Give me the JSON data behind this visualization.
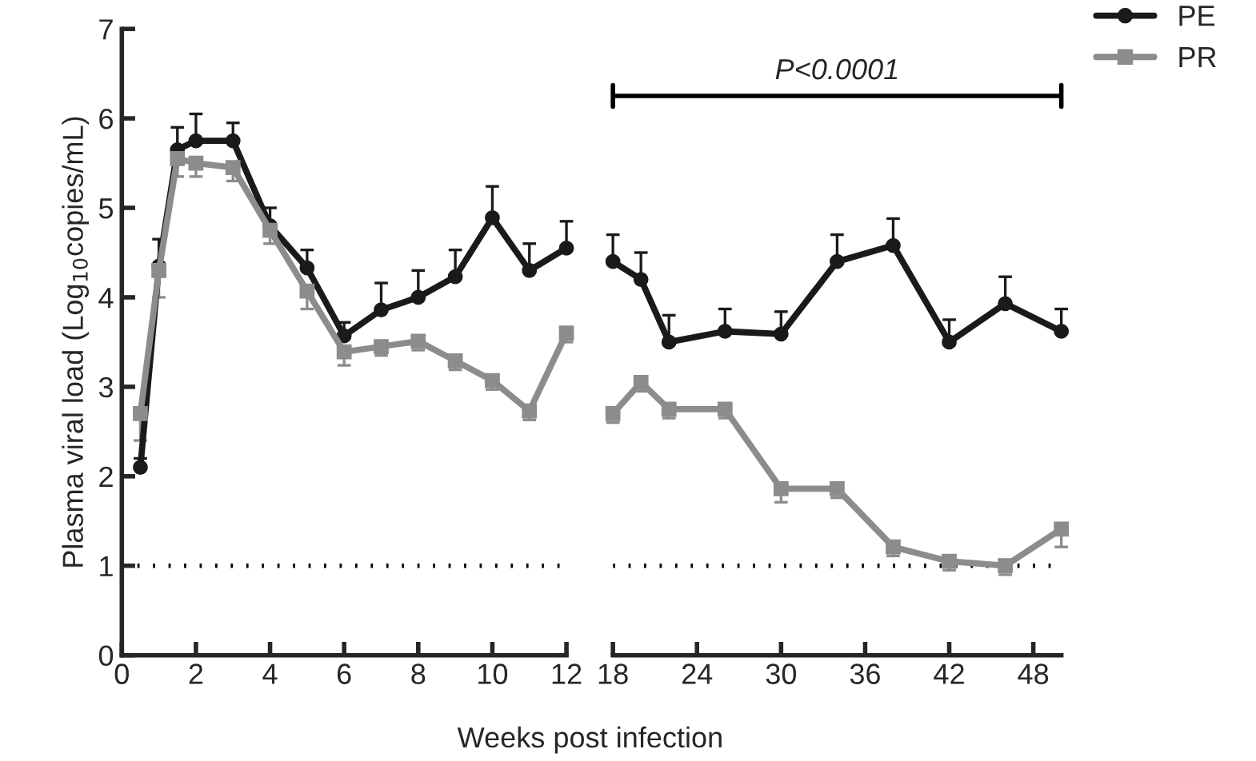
{
  "chart_data": [
    {
      "type": "line",
      "ylabel": "Plasma viral load (Log$_{10}$copies/mL)",
      "xlabel": "Weeks post infection",
      "xlim": [
        0,
        12
      ],
      "xticks": [
        0,
        2,
        4,
        6,
        8,
        10,
        12
      ],
      "ylim": [
        0,
        7
      ],
      "yticks": [
        0,
        1,
        2,
        3,
        4,
        5,
        6,
        7
      ],
      "grid": false,
      "line_style": "solid",
      "ref_lines": [
        {
          "axis": "y",
          "value": 1,
          "line_style": "dotted",
          "color": "#000000"
        }
      ],
      "series": [
        {
          "color": "#1a1a1a",
          "marker": "circle",
          "x": [
            0.5,
            1,
            1.5,
            2,
            3,
            4,
            5,
            6,
            7,
            8,
            9,
            10,
            11,
            12
          ],
          "values": [
            2.1,
            4.35,
            5.65,
            5.75,
            5.75,
            4.8,
            4.33,
            3.57,
            3.86,
            4.0,
            4.23,
            4.89,
            4.3,
            4.55
          ],
          "errors": [
            [
              2.1,
              2.2
            ],
            [
              4.35,
              4.65
            ],
            [
              5.65,
              5.9
            ],
            [
              5.75,
              6.05
            ],
            [
              5.75,
              5.95
            ],
            [
              4.8,
              5.0
            ],
            [
              4.33,
              4.53
            ],
            [
              3.57,
              3.72
            ],
            [
              3.86,
              4.16
            ],
            [
              4.0,
              4.3
            ],
            [
              4.23,
              4.53
            ],
            [
              4.89,
              5.24
            ],
            [
              4.3,
              4.6
            ],
            [
              4.55,
              4.85
            ]
          ]
        },
        {
          "color": "#8c8c8c",
          "marker": "square",
          "x": [
            0.5,
            1,
            1.5,
            2,
            3,
            4,
            5,
            6,
            7,
            8,
            9,
            10,
            11,
            12
          ],
          "values": [
            2.7,
            4.3,
            5.55,
            5.5,
            5.45,
            4.75,
            4.07,
            3.39,
            3.45,
            3.51,
            3.29,
            3.07,
            2.73,
            3.6
          ],
          "errors": [
            [
              2.4,
              2.7
            ],
            [
              4.0,
              4.3
            ],
            [
              5.35,
              5.55
            ],
            [
              5.35,
              5.5
            ],
            [
              5.3,
              5.45
            ],
            [
              4.6,
              4.75
            ],
            [
              3.87,
              4.07
            ],
            [
              3.24,
              3.39
            ],
            [
              3.35,
              3.45
            ],
            [
              3.41,
              3.51
            ],
            [
              3.19,
              3.29
            ],
            [
              2.97,
              3.07
            ],
            [
              2.63,
              2.73
            ],
            [
              3.5,
              3.6
            ]
          ]
        }
      ]
    },
    {
      "type": "line",
      "tick_labels": "x",
      "xlim": [
        18,
        50
      ],
      "xticks": [
        18,
        24,
        30,
        36,
        42,
        48
      ],
      "ylim": [
        0,
        7
      ],
      "yticks": [
        0,
        1,
        2,
        3,
        4,
        5,
        6,
        7
      ],
      "grid": false,
      "legend": "top right",
      "line_style": "solid",
      "annotations": [
        "P<0.0001"
      ],
      "ref_lines": [
        {
          "axis": "y",
          "value": 1,
          "line_style": "dotted",
          "color": "#000000"
        }
      ],
      "series": [
        {
          "name": "PE",
          "color": "#1a1a1a",
          "marker": "circle",
          "x": [
            18,
            20,
            22,
            26,
            30,
            34,
            38,
            42,
            46,
            50
          ],
          "values": [
            4.4,
            4.2,
            3.5,
            3.62,
            3.59,
            4.4,
            4.58,
            3.5,
            3.93,
            3.62
          ],
          "errors": [
            [
              4.4,
              4.7
            ],
            [
              4.2,
              4.5
            ],
            [
              3.5,
              3.8
            ],
            [
              3.62,
              3.87
            ],
            [
              3.59,
              3.84
            ],
            [
              4.4,
              4.7
            ],
            [
              4.58,
              4.88
            ],
            [
              3.5,
              3.75
            ],
            [
              3.93,
              4.23
            ],
            [
              3.62,
              3.87
            ]
          ]
        },
        {
          "name": "PR",
          "color": "#8c8c8c",
          "marker": "square",
          "x": [
            18,
            20,
            22,
            26,
            30,
            34,
            38,
            42,
            46,
            50
          ],
          "values": [
            2.7,
            3.05,
            2.75,
            2.75,
            1.86,
            1.86,
            1.21,
            1.05,
            1.0,
            1.41
          ],
          "errors": [
            [
              2.6,
              2.7
            ],
            [
              2.95,
              3.05
            ],
            [
              2.65,
              2.75
            ],
            [
              2.65,
              2.75
            ],
            [
              1.71,
              1.86
            ],
            [
              1.76,
              1.86
            ],
            [
              1.11,
              1.21
            ],
            [
              0.95,
              1.05
            ],
            [
              0.9,
              1.0
            ],
            [
              1.21,
              1.41
            ]
          ]
        }
      ]
    }
  ]
}
